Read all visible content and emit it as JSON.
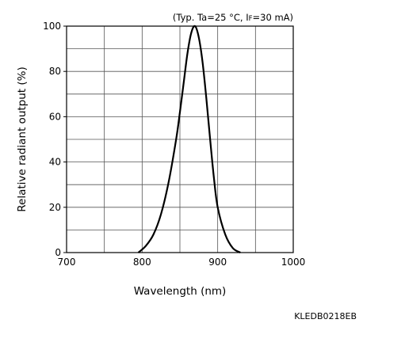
{
  "chart_data": {
    "type": "line",
    "title": "",
    "condition": {
      "prefix": "(Typ. Ta=25 °C, I",
      "subscript": "F",
      "suffix": "=30 mA)"
    },
    "xlabel": "Wavelength (nm)",
    "ylabel": "Relative radiant output (%)",
    "xlim": [
      700,
      1000
    ],
    "ylim": [
      0,
      100
    ],
    "xticks": [
      700,
      800,
      900,
      1000
    ],
    "yticks": [
      0,
      20,
      40,
      60,
      80,
      100
    ],
    "xgrid_step": 50,
    "ygrid_step": 10,
    "grid": true,
    "series": [
      {
        "color": "#000000",
        "x": [
          795,
          805,
          815,
          825,
          835,
          845,
          850,
          855,
          860,
          865,
          870,
          875,
          880,
          885,
          890,
          895,
          900,
          910,
          920,
          930
        ],
        "y": [
          0,
          3,
          8,
          17,
          31,
          50,
          62,
          75,
          88,
          97,
          100,
          95,
          84,
          68,
          50,
          33,
          20,
          8,
          2,
          0
        ]
      }
    ]
  },
  "figure_code": "KLEDB0218EB"
}
